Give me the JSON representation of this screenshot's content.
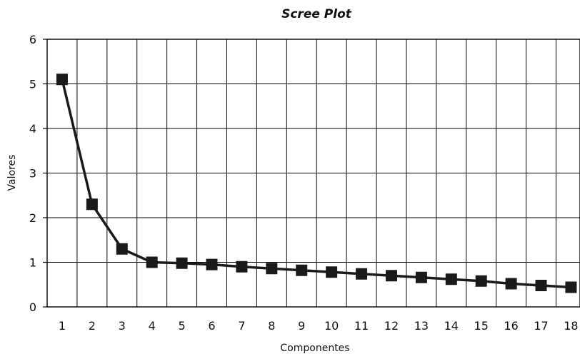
{
  "chart_data": {
    "type": "line",
    "title": "Scree Plot",
    "xlabel": "Componentes",
    "ylabel": "Valores",
    "x": [
      1,
      2,
      3,
      4,
      5,
      6,
      7,
      8,
      9,
      10,
      11,
      12,
      13,
      14,
      15,
      16,
      17,
      18
    ],
    "series": [
      {
        "values": [
          5.1,
          2.3,
          1.3,
          1.0,
          0.98,
          0.95,
          0.9,
          0.86,
          0.82,
          0.78,
          0.74,
          0.7,
          0.66,
          0.62,
          0.58,
          0.52,
          0.48,
          0.44
        ],
        "color": "#1a1a1a",
        "marker": "square"
      }
    ],
    "xlim": [
      0.5,
      18.3
    ],
    "ylim": [
      0,
      6
    ],
    "yticks": [
      "0",
      "1",
      "2",
      "3",
      "4",
      "5",
      "6"
    ],
    "xticks": [
      "1",
      "2",
      "3",
      "4",
      "5",
      "6",
      "7",
      "8",
      "9",
      "10",
      "11",
      "12",
      "13",
      "14",
      "15",
      "16",
      "17",
      "18"
    ],
    "grid": true,
    "legend": "none"
  }
}
